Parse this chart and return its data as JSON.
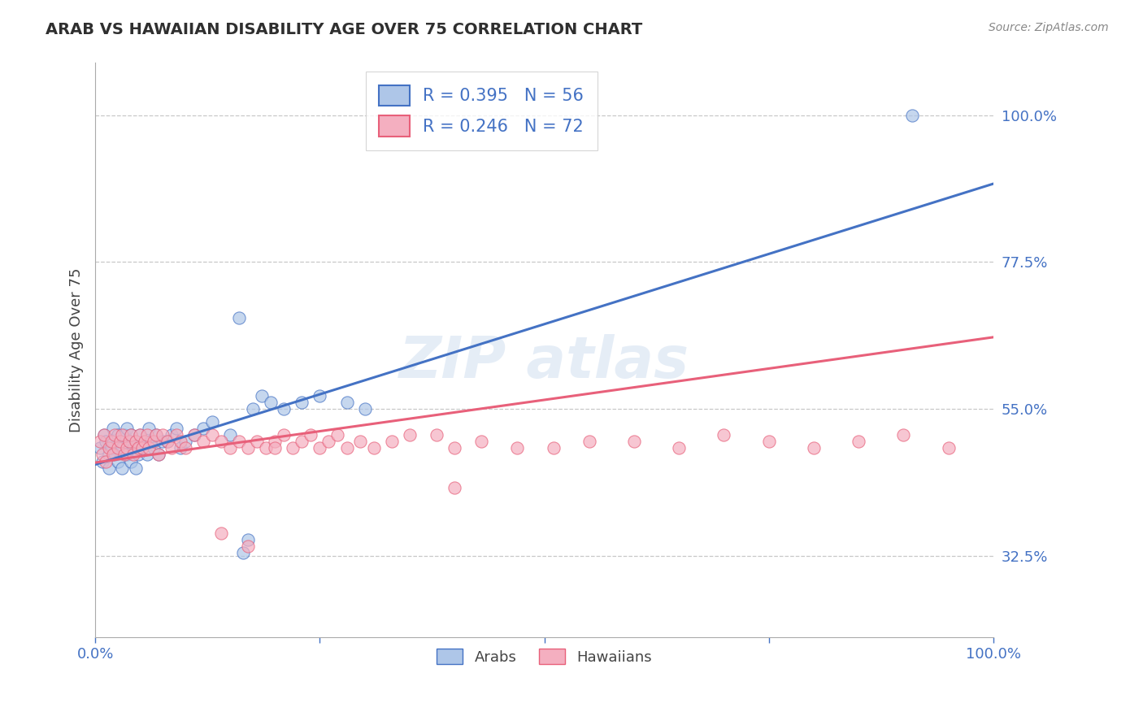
{
  "title": "ARAB VS HAWAIIAN DISABILITY AGE OVER 75 CORRELATION CHART",
  "source": "Source: ZipAtlas.com",
  "ylabel": "Disability Age Over 75",
  "xlim": [
    0,
    1
  ],
  "ylim": [
    0.2,
    1.08
  ],
  "yticks": [
    0.325,
    0.55,
    0.775,
    1.0
  ],
  "ytick_labels": [
    "32.5%",
    "55.0%",
    "77.5%",
    "100.0%"
  ],
  "xticks": [
    0.0,
    0.25,
    0.5,
    0.75,
    1.0
  ],
  "xtick_labels": [
    "0.0%",
    "",
    "",
    "",
    "100.0%"
  ],
  "arab_color": "#aec6e8",
  "hawaiian_color": "#f4afc0",
  "arab_line_color": "#4472c4",
  "hawaiian_line_color": "#e8607a",
  "legend_arab_label": "R = 0.395   N = 56",
  "legend_hawaiian_label": "R = 0.246   N = 72",
  "background_color": "#ffffff",
  "grid_color": "#c8c8c8",
  "title_color": "#2f2f2f",
  "axis_label_color": "#444444",
  "tick_color": "#4472c4",
  "arab_scatter_x": [
    0.005,
    0.008,
    0.01,
    0.012,
    0.015,
    0.015,
    0.018,
    0.02,
    0.02,
    0.022,
    0.025,
    0.025,
    0.028,
    0.03,
    0.03,
    0.032,
    0.035,
    0.035,
    0.038,
    0.04,
    0.04,
    0.042,
    0.045,
    0.045,
    0.048,
    0.05,
    0.052,
    0.055,
    0.058,
    0.06,
    0.062,
    0.065,
    0.068,
    0.07,
    0.075,
    0.08,
    0.085,
    0.09,
    0.095,
    0.1,
    0.11,
    0.12,
    0.13,
    0.15,
    0.16,
    0.175,
    0.185,
    0.195,
    0.21,
    0.23,
    0.25,
    0.28,
    0.3,
    0.165,
    0.17,
    0.91
  ],
  "arab_scatter_y": [
    0.49,
    0.47,
    0.51,
    0.5,
    0.48,
    0.46,
    0.49,
    0.5,
    0.52,
    0.48,
    0.51,
    0.47,
    0.5,
    0.46,
    0.49,
    0.51,
    0.48,
    0.52,
    0.5,
    0.47,
    0.51,
    0.49,
    0.5,
    0.46,
    0.48,
    0.51,
    0.49,
    0.5,
    0.48,
    0.52,
    0.5,
    0.49,
    0.51,
    0.48,
    0.5,
    0.5,
    0.51,
    0.52,
    0.49,
    0.5,
    0.51,
    0.52,
    0.53,
    0.51,
    0.69,
    0.55,
    0.57,
    0.56,
    0.55,
    0.56,
    0.57,
    0.56,
    0.55,
    0.33,
    0.35,
    1.0
  ],
  "hawaiian_scatter_x": [
    0.005,
    0.008,
    0.01,
    0.012,
    0.015,
    0.018,
    0.02,
    0.022,
    0.025,
    0.028,
    0.03,
    0.032,
    0.035,
    0.038,
    0.04,
    0.042,
    0.045,
    0.048,
    0.05,
    0.052,
    0.055,
    0.058,
    0.06,
    0.065,
    0.068,
    0.07,
    0.075,
    0.08,
    0.085,
    0.09,
    0.095,
    0.1,
    0.11,
    0.12,
    0.13,
    0.14,
    0.15,
    0.16,
    0.17,
    0.18,
    0.19,
    0.2,
    0.21,
    0.22,
    0.23,
    0.24,
    0.25,
    0.26,
    0.27,
    0.28,
    0.295,
    0.31,
    0.33,
    0.35,
    0.38,
    0.4,
    0.43,
    0.47,
    0.51,
    0.55,
    0.6,
    0.65,
    0.7,
    0.75,
    0.8,
    0.85,
    0.9,
    0.95,
    0.4,
    0.2,
    0.17,
    0.14
  ],
  "hawaiian_scatter_y": [
    0.5,
    0.48,
    0.51,
    0.47,
    0.49,
    0.5,
    0.48,
    0.51,
    0.49,
    0.5,
    0.51,
    0.48,
    0.49,
    0.5,
    0.51,
    0.48,
    0.5,
    0.49,
    0.51,
    0.49,
    0.5,
    0.51,
    0.49,
    0.5,
    0.51,
    0.48,
    0.51,
    0.5,
    0.49,
    0.51,
    0.5,
    0.49,
    0.51,
    0.5,
    0.51,
    0.5,
    0.49,
    0.5,
    0.49,
    0.5,
    0.49,
    0.5,
    0.51,
    0.49,
    0.5,
    0.51,
    0.49,
    0.5,
    0.51,
    0.49,
    0.5,
    0.49,
    0.5,
    0.51,
    0.51,
    0.49,
    0.5,
    0.49,
    0.49,
    0.5,
    0.5,
    0.49,
    0.51,
    0.5,
    0.49,
    0.5,
    0.51,
    0.49,
    0.43,
    0.49,
    0.34,
    0.36
  ],
  "arab_line_x0": 0.0,
  "arab_line_y0": 0.465,
  "arab_line_x1": 1.0,
  "arab_line_y1": 0.895,
  "hawaiian_line_x0": 0.0,
  "hawaiian_line_y0": 0.468,
  "hawaiian_line_x1": 1.0,
  "hawaiian_line_y1": 0.66
}
